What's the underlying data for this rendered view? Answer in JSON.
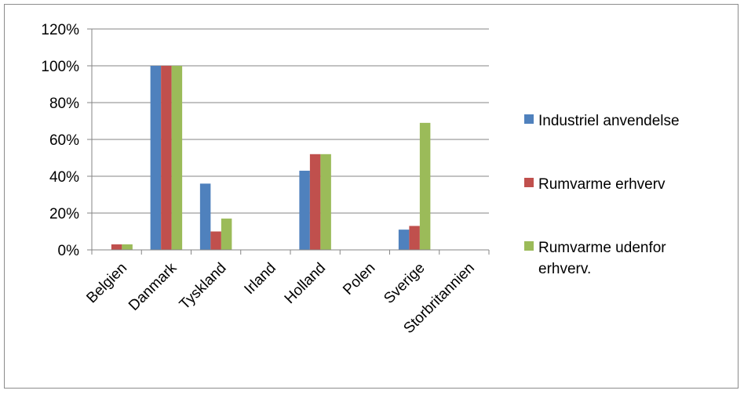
{
  "chart_data": {
    "type": "bar",
    "title": "",
    "xlabel": "",
    "ylabel": "",
    "categories": [
      "Belgien",
      "Danmark",
      "Tyskland",
      "Irland",
      "Holland",
      "Polen",
      "Sverige",
      "Storbritannien"
    ],
    "series": [
      {
        "name": "Industriel anvendelse",
        "color": "#4f81bd",
        "values": [
          0,
          100,
          36,
          0,
          43,
          0,
          11,
          0
        ]
      },
      {
        "name": "Rumvarme erhverv",
        "color": "#c0504d",
        "values": [
          3,
          100,
          10,
          0,
          52,
          0,
          13,
          0
        ]
      },
      {
        "name": "Rumvarme udenfor erhverv.",
        "color": "#9bbb59",
        "values": [
          3,
          100,
          17,
          0,
          52,
          0,
          69,
          0
        ]
      }
    ],
    "ylim": [
      0,
      120
    ],
    "yticks": [
      "0%",
      "20%",
      "40%",
      "60%",
      "80%",
      "100%",
      "120%"
    ],
    "grid": true,
    "legend_position": "right",
    "legend_lines": [
      [
        "Industriel anvendelse"
      ],
      [
        "Rumvarme erhverv"
      ],
      [
        "Rumvarme udenfor",
        "erhverv."
      ]
    ]
  }
}
